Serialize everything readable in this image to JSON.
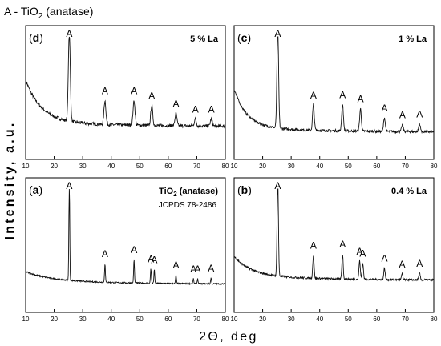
{
  "header": {
    "legend_prefix": "A - TiO",
    "legend_sub": "2",
    "legend_suffix": " (anatase)"
  },
  "y_axis_label": "Intensity, a.u.",
  "x_axis_label": "2Θ, deg",
  "chart_data": [
    {
      "type": "line",
      "panel_letter": "d",
      "title": "5 % La",
      "xlim": [
        10,
        80
      ],
      "x_ticks": [
        10,
        20,
        30,
        40,
        50,
        60,
        70,
        80
      ],
      "peaks": [
        {
          "x": 25.3,
          "label": "A",
          "rel_height": 1.0
        },
        {
          "x": 37.8,
          "label": "A",
          "rel_height": 0.27
        },
        {
          "x": 48.0,
          "label": "A",
          "rel_height": 0.28
        },
        {
          "x": 54.2,
          "label": "A",
          "rel_height": 0.23
        },
        {
          "x": 62.7,
          "label": "A",
          "rel_height": 0.14
        },
        {
          "x": 69.5,
          "label": "A",
          "rel_height": 0.08
        },
        {
          "x": 75.1,
          "label": "A",
          "rel_height": 0.08
        }
      ]
    },
    {
      "type": "line",
      "panel_letter": "c",
      "title": "1 % La",
      "xlim": [
        10,
        80
      ],
      "x_ticks": [
        10,
        20,
        30,
        40,
        50,
        60,
        70,
        80
      ],
      "peaks": [
        {
          "x": 25.3,
          "label": "A",
          "rel_height": 1.0
        },
        {
          "x": 37.8,
          "label": "A",
          "rel_height": 0.26
        },
        {
          "x": 48.0,
          "label": "A",
          "rel_height": 0.27
        },
        {
          "x": 54.3,
          "label": "A",
          "rel_height": 0.23
        },
        {
          "x": 62.7,
          "label": "A",
          "rel_height": 0.14
        },
        {
          "x": 69.0,
          "label": "A",
          "rel_height": 0.07
        },
        {
          "x": 75.0,
          "label": "A",
          "rel_height": 0.08
        }
      ]
    },
    {
      "type": "line",
      "panel_letter": "a",
      "title_main": "TiO",
      "title_sub": "2",
      "title_suffix": " (anatase)",
      "annotation": "JCPDS 78-2486",
      "xlim": [
        10,
        80
      ],
      "x_ticks": [
        10,
        20,
        30,
        40,
        50,
        60,
        70,
        80
      ],
      "peaks": [
        {
          "x": 25.3,
          "label": "A",
          "rel_height": 1.0
        },
        {
          "x": 37.8,
          "label": "A",
          "rel_height": 0.19
        },
        {
          "x": 48.0,
          "label": "A",
          "rel_height": 0.24
        },
        {
          "x": 53.9,
          "label": "A",
          "rel_height": 0.15
        },
        {
          "x": 55.1,
          "label": "A",
          "rel_height": 0.14
        },
        {
          "x": 62.7,
          "label": "A",
          "rel_height": 0.09
        },
        {
          "x": 68.8,
          "label": "A",
          "rel_height": 0.05
        },
        {
          "x": 70.3,
          "label": "A",
          "rel_height": 0.05
        },
        {
          "x": 75.0,
          "label": "A",
          "rel_height": 0.06
        }
      ]
    },
    {
      "type": "line",
      "panel_letter": "b",
      "title": "0.4 % La",
      "xlim": [
        10,
        80
      ],
      "x_ticks": [
        10,
        20,
        30,
        40,
        50,
        60,
        70,
        80
      ],
      "peaks": [
        {
          "x": 25.3,
          "label": "A",
          "rel_height": 1.0
        },
        {
          "x": 37.8,
          "label": "A",
          "rel_height": 0.24
        },
        {
          "x": 48.0,
          "label": "A",
          "rel_height": 0.26
        },
        {
          "x": 54.0,
          "label": "A",
          "rel_height": 0.19
        },
        {
          "x": 55.1,
          "label": "A",
          "rel_height": 0.17
        },
        {
          "x": 62.7,
          "label": "A",
          "rel_height": 0.12
        },
        {
          "x": 68.9,
          "label": "A",
          "rel_height": 0.06
        },
        {
          "x": 75.0,
          "label": "A",
          "rel_height": 0.07
        }
      ]
    }
  ]
}
